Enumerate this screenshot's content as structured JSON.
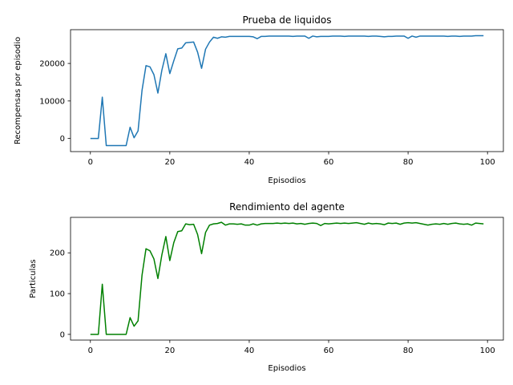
{
  "chart_data": [
    {
      "type": "line",
      "title": "Prueba de liquidos",
      "xlabel": "Episodios",
      "ylabel": "Recompensas por episodio",
      "xlim": [
        -5,
        104
      ],
      "ylim": [
        -3500,
        29000
      ],
      "xticks": [
        0,
        20,
        40,
        60,
        80,
        100
      ],
      "yticks": [
        0,
        10000,
        20000
      ],
      "grid": false,
      "series": [
        {
          "color": "#1f77b4",
          "x": [
            0,
            1,
            2,
            3,
            4,
            5,
            6,
            7,
            8,
            9,
            10,
            11,
            12,
            13,
            14,
            15,
            16,
            17,
            18,
            19,
            20,
            21,
            22,
            23,
            24,
            25,
            26,
            27,
            28,
            29,
            30,
            31,
            32,
            33,
            34,
            35,
            36,
            37,
            38,
            39,
            40,
            41,
            42,
            43,
            44,
            45,
            46,
            47,
            48,
            49,
            50,
            51,
            52,
            53,
            54,
            55,
            56,
            57,
            58,
            59,
            60,
            61,
            62,
            63,
            64,
            65,
            66,
            67,
            68,
            69,
            70,
            71,
            72,
            73,
            74,
            75,
            76,
            77,
            78,
            79,
            80,
            81,
            82,
            83,
            84,
            85,
            86,
            87,
            88,
            89,
            90,
            91,
            92,
            93,
            94,
            95,
            96,
            97,
            98,
            99
          ],
          "values": [
            0,
            0,
            0,
            11000,
            -1900,
            -1900,
            -1900,
            -1900,
            -1900,
            -1900,
            3000,
            200,
            2000,
            12800,
            19400,
            19100,
            17000,
            12100,
            18200,
            22600,
            17300,
            20700,
            23900,
            24100,
            25500,
            25600,
            25700,
            23000,
            18700,
            23800,
            25700,
            27000,
            26700,
            27100,
            27000,
            27200,
            27200,
            27200,
            27200,
            27200,
            27200,
            27100,
            26600,
            27200,
            27200,
            27300,
            27300,
            27300,
            27300,
            27300,
            27300,
            27200,
            27300,
            27300,
            27300,
            26700,
            27300,
            27100,
            27200,
            27200,
            27200,
            27300,
            27300,
            27300,
            27200,
            27300,
            27300,
            27300,
            27300,
            27300,
            27200,
            27300,
            27300,
            27200,
            27100,
            27200,
            27200,
            27300,
            27300,
            27300,
            26700,
            27300,
            27000,
            27300,
            27300,
            27300,
            27300,
            27300,
            27300,
            27300,
            27200,
            27300,
            27300,
            27200,
            27300,
            27300,
            27300,
            27400,
            27400,
            27400
          ]
        }
      ]
    },
    {
      "type": "line",
      "title": "Rendimiento del agente",
      "xlabel": "Episodios",
      "ylabel": "Particulas",
      "xlim": [
        -5,
        104
      ],
      "ylim": [
        -14,
        287
      ],
      "xticks": [
        0,
        20,
        40,
        60,
        80,
        100
      ],
      "yticks": [
        0,
        100,
        200
      ],
      "grid": false,
      "series": [
        {
          "color": "#008000",
          "x": [
            0,
            1,
            2,
            3,
            4,
            5,
            6,
            7,
            8,
            9,
            10,
            11,
            12,
            13,
            14,
            15,
            16,
            17,
            18,
            19,
            20,
            21,
            22,
            23,
            24,
            25,
            26,
            27,
            28,
            29,
            30,
            31,
            32,
            33,
            34,
            35,
            36,
            37,
            38,
            39,
            40,
            41,
            42,
            43,
            44,
            45,
            46,
            47,
            48,
            49,
            50,
            51,
            52,
            53,
            54,
            55,
            56,
            57,
            58,
            59,
            60,
            61,
            62,
            63,
            64,
            65,
            66,
            67,
            68,
            69,
            70,
            71,
            72,
            73,
            74,
            75,
            76,
            77,
            78,
            79,
            80,
            81,
            82,
            83,
            84,
            85,
            86,
            87,
            88,
            89,
            90,
            91,
            92,
            93,
            94,
            95,
            96,
            97,
            98,
            99
          ],
          "values": [
            0,
            0,
            0,
            123,
            0,
            0,
            0,
            0,
            0,
            0,
            41,
            20,
            33,
            145,
            210,
            205,
            185,
            137,
            195,
            240,
            181,
            225,
            252,
            254,
            271,
            269,
            270,
            245,
            198,
            250,
            268,
            271,
            272,
            275,
            268,
            271,
            271,
            270,
            271,
            268,
            268,
            271,
            268,
            271,
            272,
            272,
            272,
            273,
            272,
            273,
            272,
            273,
            271,
            272,
            270,
            272,
            273,
            272,
            267,
            272,
            271,
            272,
            273,
            272,
            273,
            272,
            273,
            274,
            272,
            270,
            273,
            271,
            272,
            271,
            269,
            273,
            272,
            273,
            270,
            273,
            274,
            273,
            274,
            272,
            270,
            268,
            270,
            271,
            270,
            272,
            270,
            272,
            273,
            271,
            270,
            271,
            268,
            273,
            272,
            271
          ]
        }
      ]
    }
  ]
}
